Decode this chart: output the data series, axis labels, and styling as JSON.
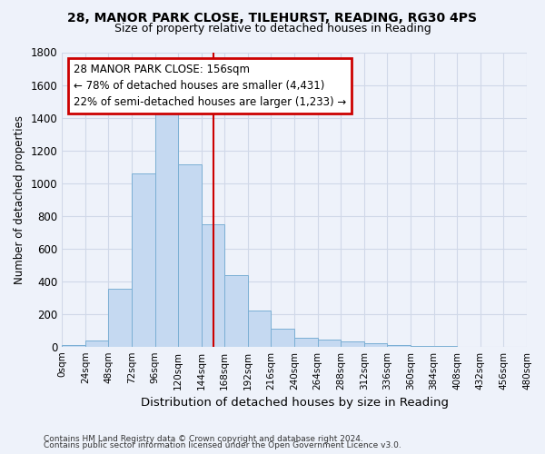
{
  "title_line1": "28, MANOR PARK CLOSE, TILEHURST, READING, RG30 4PS",
  "title_line2": "Size of property relative to detached houses in Reading",
  "xlabel": "Distribution of detached houses by size in Reading",
  "ylabel": "Number of detached properties",
  "bin_labels": [
    "0sqm",
    "24sqm",
    "48sqm",
    "72sqm",
    "96sqm",
    "120sqm",
    "144sqm",
    "168sqm",
    "192sqm",
    "216sqm",
    "240sqm",
    "264sqm",
    "288sqm",
    "312sqm",
    "336sqm",
    "360sqm",
    "384sqm",
    "408sqm",
    "432sqm",
    "456sqm",
    "480sqm"
  ],
  "bar_values": [
    10,
    38,
    355,
    1060,
    1465,
    1115,
    750,
    435,
    222,
    110,
    52,
    45,
    30,
    20,
    8,
    3,
    2,
    0,
    0,
    0,
    0
  ],
  "bar_color": "#c5d9f1",
  "bar_edgecolor": "#7bafd4",
  "vline_x": 156,
  "annotation_line1": "28 MANOR PARK CLOSE: 156sqm",
  "annotation_line2": "← 78% of detached houses are smaller (4,431)",
  "annotation_line3": "22% of semi-detached houses are larger (1,233) →",
  "annotation_box_color": "#ffffff",
  "annotation_box_edgecolor": "#cc0000",
  "ylim": [
    0,
    1800
  ],
  "yticks": [
    0,
    200,
    400,
    600,
    800,
    1000,
    1200,
    1400,
    1600,
    1800
  ],
  "grid_color": "#d0d8e8",
  "background_color": "#eef2fa",
  "footer_line1": "Contains HM Land Registry data © Crown copyright and database right 2024.",
  "footer_line2": "Contains public sector information licensed under the Open Government Licence v3.0.",
  "vline_color": "#cc0000",
  "bin_width": 24
}
